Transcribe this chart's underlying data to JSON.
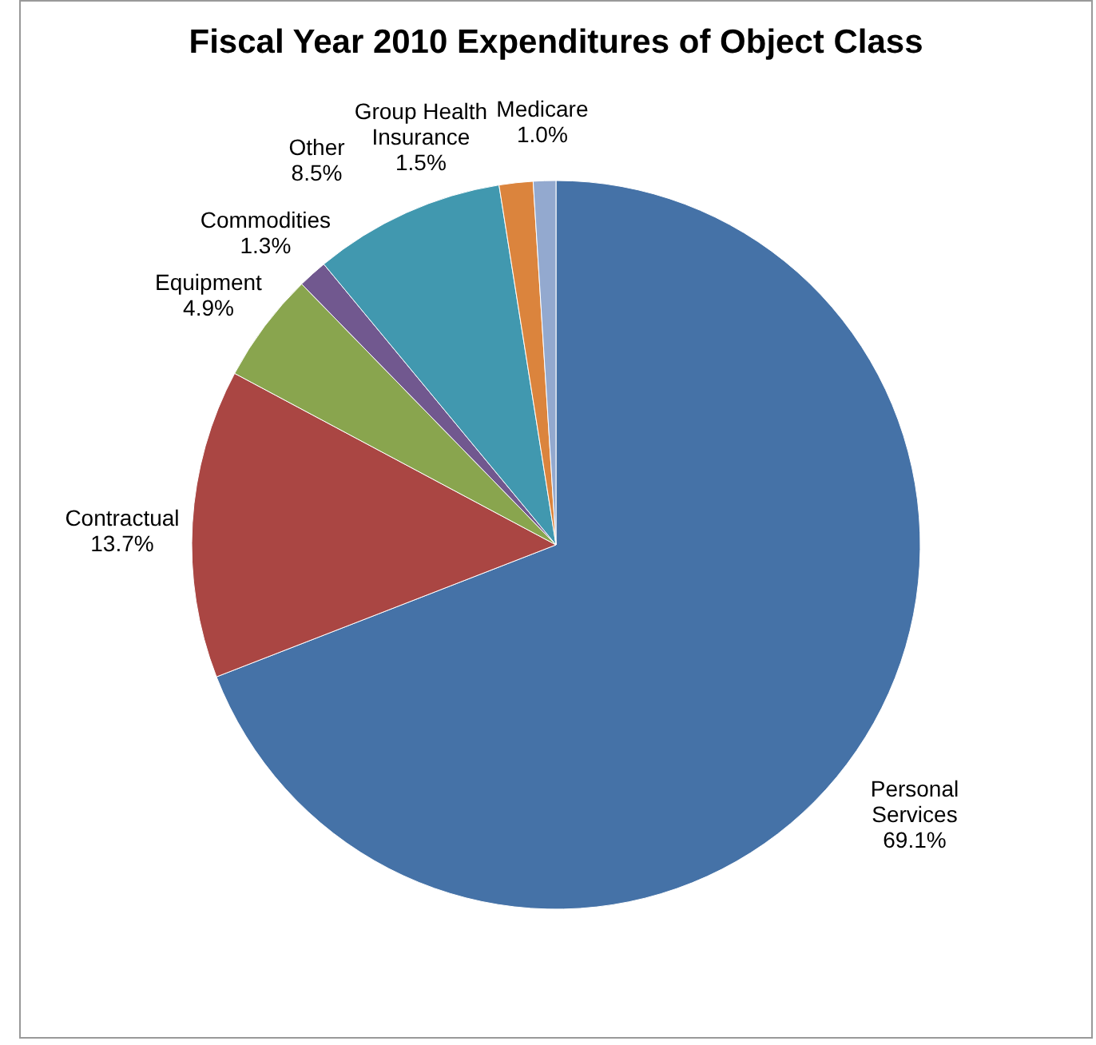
{
  "chart_data": {
    "type": "pie",
    "title": "Fiscal Year 2010 Expenditures of Object Class",
    "categories": [
      "Personal Services",
      "Contractual",
      "Equipment",
      "Commodities",
      "Other",
      "Group Health Insurance",
      "Medicare"
    ],
    "values": [
      69.1,
      13.7,
      4.9,
      1.3,
      8.5,
      1.5,
      1.0
    ],
    "value_labels": [
      "69.1%",
      "13.7%",
      "4.9%",
      "1.3%",
      "8.5%",
      "1.5%",
      "1.0%"
    ],
    "colors": [
      "#4572a7",
      "#aa4643",
      "#89a54e",
      "#71588f",
      "#4198af",
      "#db843d",
      "#93a9cf"
    ],
    "legend": false
  }
}
